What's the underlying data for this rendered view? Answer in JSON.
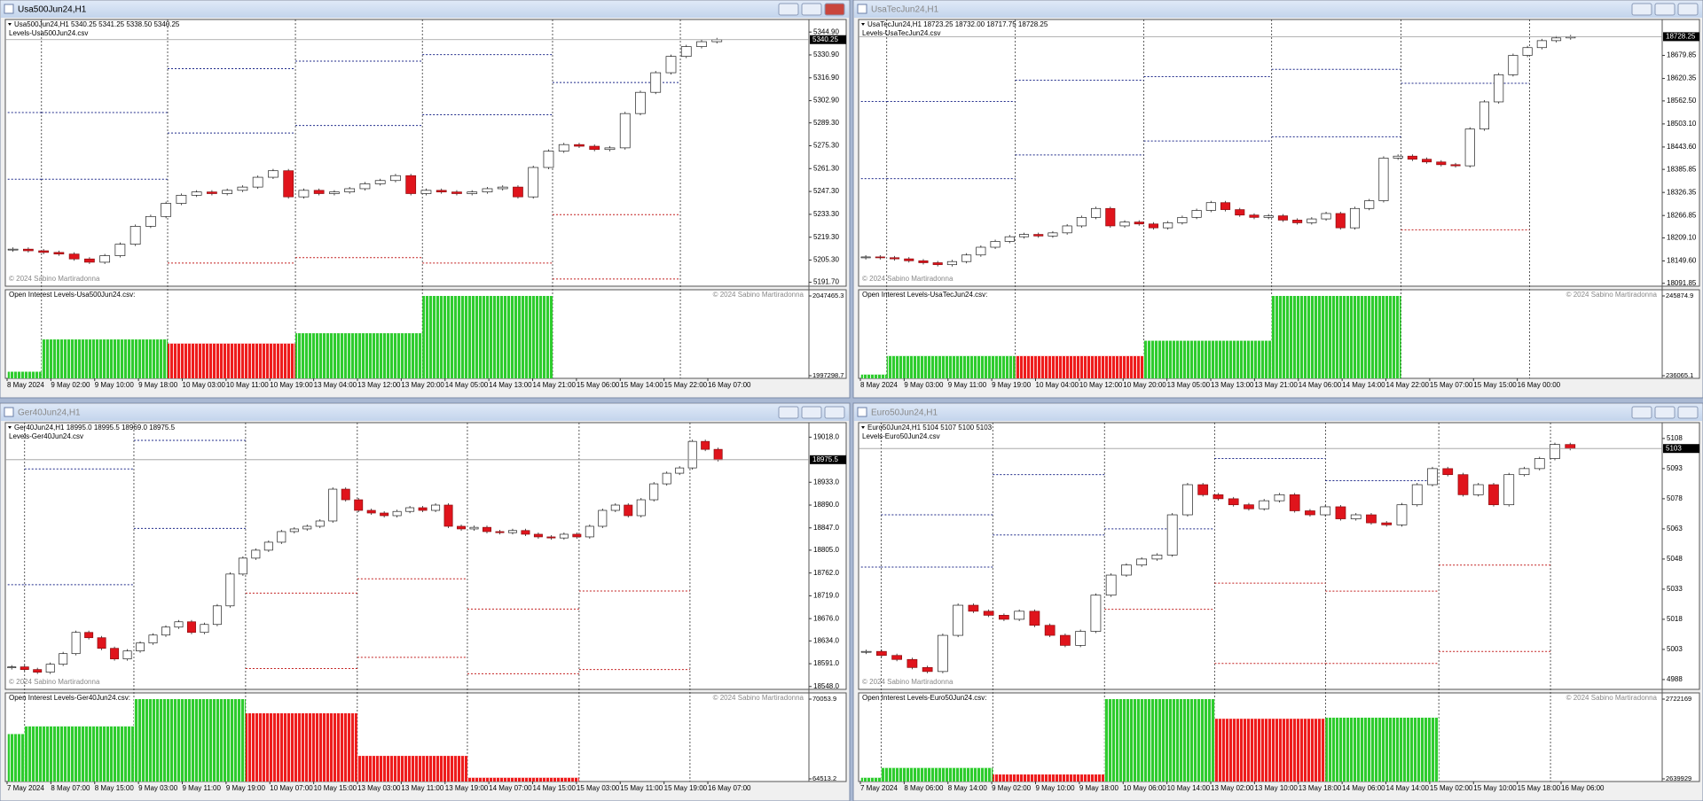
{
  "chart_data": [
    {
      "type": "candlestick",
      "window_title": "Usa500Jun24,H1",
      "header": "Usa500Jun24,H1  5340.25 5341.25 5338.50 5340.25",
      "levels_file": "Levels-Usa500Jun24.csv",
      "copyright": "© 2024 Sabino Martiradonna",
      "ylim": [
        5190.4,
        5351.5
      ],
      "yticks": [
        {
          "value": 5344.9,
          "label": "5344.90"
        },
        {
          "value": 5330.9,
          "label": "5330.90"
        },
        {
          "value": 5316.9,
          "label": "5316.90"
        },
        {
          "value": 5302.9,
          "label": "5302.90"
        },
        {
          "value": 5289.3,
          "label": "5289.30"
        },
        {
          "value": 5275.3,
          "label": "5275.30"
        },
        {
          "value": 5261.3,
          "label": "5261.30"
        },
        {
          "value": 5247.3,
          "label": "5247.30"
        },
        {
          "value": 5233.3,
          "label": "5233.30"
        },
        {
          "value": 5219.3,
          "label": "5219.30"
        },
        {
          "value": 5205.3,
          "label": "5205.30"
        },
        {
          "value": 5191.7,
          "label": "5191.70"
        }
      ],
      "last_price": 5340.25,
      "close": [
        5212,
        5211,
        5210,
        5209,
        5206,
        5204,
        5208,
        5215,
        5226,
        5232,
        5240,
        5245,
        5247,
        5246,
        5248,
        5250,
        5256,
        5260,
        5244,
        5248,
        5246,
        5247,
        5249,
        5252,
        5254,
        5257,
        5246,
        5248,
        5247,
        5246,
        5247,
        5249,
        5250,
        5244,
        5262,
        5272,
        5276,
        5275,
        5273,
        5274,
        5295,
        5308,
        5320,
        5330,
        5336,
        5339,
        5340.25
      ],
      "x_labels": [
        "8 May 2024",
        "9 May 02:00",
        "9 May 10:00",
        "9 May 18:00",
        "10 May 03:00",
        "10 May 11:00",
        "10 May 19:00",
        "13 May 04:00",
        "13 May 12:00",
        "13 May 20:00",
        "14 May 05:00",
        "14 May 13:00",
        "14 May 21:00",
        "15 May 06:00",
        "15 May 14:00",
        "15 May 22:00",
        "16 May 07:00"
      ],
      "upper_color": "#1f2a8a",
      "lower_color": "#c21f1f",
      "levels": [
        {
          "upper": [
            5295.6,
            5254.8
          ],
          "lower": []
        },
        {
          "upper": [
            5295.6,
            5254.8
          ],
          "lower": []
        },
        {
          "upper": [
            5322.5,
            5283.1
          ],
          "lower": [
            5203.5
          ]
        },
        {
          "upper": [
            5327.1,
            5287.7
          ],
          "lower": [
            5206.8
          ]
        },
        {
          "upper": [
            5331.1,
            5294.3
          ],
          "lower": [
            5203.5
          ]
        },
        {
          "upper": [
            5314
          ],
          "lower": [
            5233.1,
            5193.7
          ]
        },
        {
          "upper": [],
          "lower": []
        }
      ],
      "open_interest": {
        "label": "Open Interest Levels-Usa500Jun24.csv:",
        "copyright": "© 2024 Sabino Martiradonna",
        "ylim": [
          1997298.7,
          2047465.3
        ],
        "yticks": [
          1997298.7,
          2047465.3
        ],
        "values": [
          1999800,
          2020100,
          2017500,
          2024000,
          2047465.3,
          null,
          null
        ],
        "colors": [
          "#2ecc2e",
          "#2ecc2e",
          "#ee1c1c",
          "#2ecc2e",
          "#2ecc2e",
          null,
          null
        ]
      }
    },
    {
      "type": "candlestick",
      "window_title": "UsaTecJun24,H1",
      "header": "UsaTecJun24,H1  18723.25 18732.00 18717.75 18728.25",
      "levels_file": "Levels-UsaTecJun24.csv",
      "copyright": "© 2024 Sabino Martiradonna",
      "ylim": [
        18089,
        18768
      ],
      "yticks": [
        18679.85,
        18620.35,
        {
          "value": 18562.5,
          "label": "18562.50"
        },
        {
          "value": 18503.1,
          "label": "18503.10"
        },
        {
          "value": 18443.6,
          "label": "18443.60"
        },
        18385.85,
        18326.35,
        18266.85,
        {
          "value": 18209.1,
          "label": "18209.10"
        },
        {
          "value": 18149.6,
          "label": "18149.60"
        },
        18091.85
      ],
      "last_price": 18728.25,
      "close": [
        18160,
        18158,
        18155,
        18150,
        18145,
        18140,
        18148,
        18165,
        18185,
        18200,
        18212,
        18218,
        18214,
        18222,
        18240,
        18262,
        18285,
        18240,
        18250,
        18245,
        18235,
        18248,
        18262,
        18280,
        18300,
        18282,
        18268,
        18262,
        18266,
        18255,
        18248,
        18258,
        18272,
        18235,
        18285,
        18305,
        18415,
        18420,
        18412,
        18405,
        18398,
        18395,
        18490,
        18560,
        18630,
        18680,
        18700,
        18718,
        18725,
        18728.25
      ],
      "x_labels": [
        "8 May 2024",
        "9 May 03:00",
        "9 May 11:00",
        "9 May 19:00",
        "10 May 04:00",
        "10 May 12:00",
        "10 May 20:00",
        "13 May 05:00",
        "13 May 13:00",
        "13 May 21:00",
        "14 May 06:00",
        "14 May 14:00",
        "14 May 22:00",
        "15 May 07:00",
        "15 May 15:00",
        "16 May 00:00"
      ],
      "upper_color": "#1f2a8a",
      "lower_color": "#c21f1f",
      "levels": [
        {
          "upper": [
            18561,
            18362
          ],
          "lower": []
        },
        {
          "upper": [
            18561,
            18362
          ],
          "lower": []
        },
        {
          "upper": [
            18616,
            18423
          ],
          "lower": []
        },
        {
          "upper": [
            18625,
            18459
          ],
          "lower": []
        },
        {
          "upper": [
            18644,
            18470
          ],
          "lower": []
        },
        {
          "upper": [
            18608
          ],
          "lower": [
            18230
          ]
        },
        {
          "upper": [],
          "lower": []
        }
      ],
      "open_interest": {
        "label": "Open Interest Levels-UsaTecJun24.csv:",
        "copyright": "© 2024 Sabino Martiradonna",
        "ylim": [
          236065.1,
          245874.9
        ],
        "yticks": [
          236065.1,
          245874.9
        ],
        "values": [
          236200,
          238484,
          238480,
          240365,
          245874.9,
          null,
          null
        ],
        "colors": [
          "#2ecc2e",
          "#2ecc2e",
          "#ee1c1c",
          "#2ecc2e",
          "#2ecc2e",
          null,
          null
        ]
      }
    },
    {
      "type": "candlestick",
      "window_title": "Ger40Jun24,H1",
      "header": "Ger40Jun24,H1  18995.0 18995.5 18969.0 18975.5",
      "levels_file": "Levels-Ger40Jun24.csv",
      "copyright": "© 2024 Sabino Martiradonna",
      "ylim": [
        18546,
        19042
      ],
      "yticks": [
        {
          "value": 19018,
          "label": "19018.0"
        },
        {
          "value": 18933,
          "label": "18933.0"
        },
        {
          "value": 18890,
          "label": "18890.0"
        },
        {
          "value": 18847,
          "label": "18847.0"
        },
        {
          "value": 18805,
          "label": "18805.0"
        },
        {
          "value": 18762,
          "label": "18762.0"
        },
        {
          "value": 18719,
          "label": "18719.0"
        },
        {
          "value": 18676,
          "label": "18676.0"
        },
        {
          "value": 18634,
          "label": "18634.0"
        },
        {
          "value": 18591,
          "label": "18591.0"
        },
        {
          "value": 18548,
          "label": "18548.0"
        }
      ],
      "last_price": 18975.5,
      "close": [
        18585,
        18580,
        18575,
        18590,
        18610,
        18650,
        18640,
        18620,
        18600,
        18615,
        18630,
        18645,
        18660,
        18670,
        18650,
        18665,
        18700,
        18760,
        18790,
        18805,
        18820,
        18840,
        18845,
        18850,
        18860,
        18920,
        18900,
        18880,
        18875,
        18870,
        18878,
        18885,
        18880,
        18890,
        18850,
        18845,
        18848,
        18840,
        18838,
        18842,
        18835,
        18830,
        18828,
        18835,
        18830,
        18850,
        18880,
        18890,
        18870,
        18900,
        18930,
        18950,
        18960,
        19010,
        18995,
        18975.5
      ],
      "x_labels": [
        "7 May 2024",
        "8 May 07:00",
        "8 May 15:00",
        "9 May 03:00",
        "9 May 11:00",
        "9 May 19:00",
        "10 May 07:00",
        "10 May 15:00",
        "13 May 03:00",
        "13 May 11:00",
        "13 May 19:00",
        "14 May 07:00",
        "14 May 15:00",
        "15 May 03:00",
        "15 May 11:00",
        "15 May 19:00",
        "16 May 07:00"
      ],
      "upper_color": "#1f2a8a",
      "lower_color": "#c21f1f",
      "levels": [
        {
          "upper": [
            18740
          ],
          "lower": []
        },
        {
          "upper": [
            18958,
            18740
          ],
          "lower": []
        },
        {
          "upper": [
            19012,
            18846
          ],
          "lower": []
        },
        {
          "upper": [],
          "lower": [
            18724,
            18582
          ]
        },
        {
          "upper": [],
          "lower": [
            18751,
            18603
          ]
        },
        {
          "upper": [],
          "lower": [
            18694,
            18572
          ]
        },
        {
          "upper": [],
          "lower": [
            18728,
            18580
          ]
        },
        {
          "upper": [],
          "lower": []
        }
      ],
      "open_interest": {
        "label": "Open Interest Levels-Ger40Jun24.csv:",
        "copyright": "© 2024 Sabino Martiradonna",
        "ylim": [
          64513.2,
          70053.9
        ],
        "yticks": [
          64513.2,
          70053.9
        ],
        "values": [
          67625,
          68157,
          70053.9,
          69067,
          66107,
          64589,
          null,
          null
        ],
        "colors": [
          "#2ecc2e",
          "#2ecc2e",
          "#2ecc2e",
          "#ee1c1c",
          "#ee1c1c",
          "#ee1c1c",
          null,
          null
        ]
      }
    },
    {
      "type": "candlestick",
      "window_title": "Euro50Jun24,H1",
      "header": "Euro50Jun24,H1  5104 5107 5100 5103",
      "levels_file": "Levels-Euro50Jun24.csv",
      "copyright": "© 2024 Sabino Martiradonna",
      "ylim": [
        4984,
        5115
      ],
      "yticks": [
        5108,
        5093,
        5078,
        5063,
        5048,
        5033,
        5018,
        5003,
        4988
      ],
      "last_price": 5103,
      "close": [
        5002,
        5000,
        4998,
        4994,
        4992,
        5010,
        5025,
        5022,
        5020,
        5018,
        5022,
        5015,
        5010,
        5005,
        5012,
        5030,
        5040,
        5045,
        5048,
        5050,
        5070,
        5085,
        5080,
        5078,
        5075,
        5073,
        5077,
        5080,
        5072,
        5070,
        5074,
        5068,
        5070,
        5066,
        5065,
        5075,
        5085,
        5093,
        5090,
        5080,
        5085,
        5075,
        5090,
        5093,
        5098,
        5105,
        5103
      ],
      "x_labels": [
        "7 May 2024",
        "8 May 06:00",
        "8 May 14:00",
        "9 May 02:00",
        "9 May 10:00",
        "9 May 18:00",
        "10 May 06:00",
        "10 May 14:00",
        "13 May 02:00",
        "13 May 10:00",
        "13 May 18:00",
        "14 May 06:00",
        "14 May 14:00",
        "15 May 02:00",
        "15 May 10:00",
        "15 May 18:00",
        "16 May 06:00"
      ],
      "upper_color": "#1f2a8a",
      "lower_color": "#c21f1f",
      "levels": [
        {
          "upper": [
            5044
          ],
          "lower": []
        },
        {
          "upper": [
            5070,
            5044
          ],
          "lower": []
        },
        {
          "upper": [
            5090,
            5060
          ],
          "lower": []
        },
        {
          "upper": [
            5063
          ],
          "lower": [
            5023
          ]
        },
        {
          "upper": [
            5098
          ],
          "lower": [
            5036,
            4996
          ]
        },
        {
          "upper": [
            5087
          ],
          "lower": [
            5032,
            4996
          ]
        },
        {
          "upper": [],
          "lower": [
            5045,
            5002
          ]
        },
        {
          "upper": [],
          "lower": []
        }
      ],
      "open_interest": {
        "label": "Open Interest Levels-Euro50Jun24.csv:",
        "copyright": "© 2024 Sabino Martiradonna",
        "ylim": [
          2639929,
          2722169
        ],
        "yticks": [
          2639929,
          2722169
        ],
        "values": [
          2641056,
          2651195,
          2644435,
          2722169,
          2701890,
          2703017,
          null,
          null
        ],
        "colors": [
          "#2ecc2e",
          "#2ecc2e",
          "#ee1c1c",
          "#2ecc2e",
          "#ee1c1c",
          "#2ecc2e",
          null,
          null
        ]
      }
    }
  ]
}
